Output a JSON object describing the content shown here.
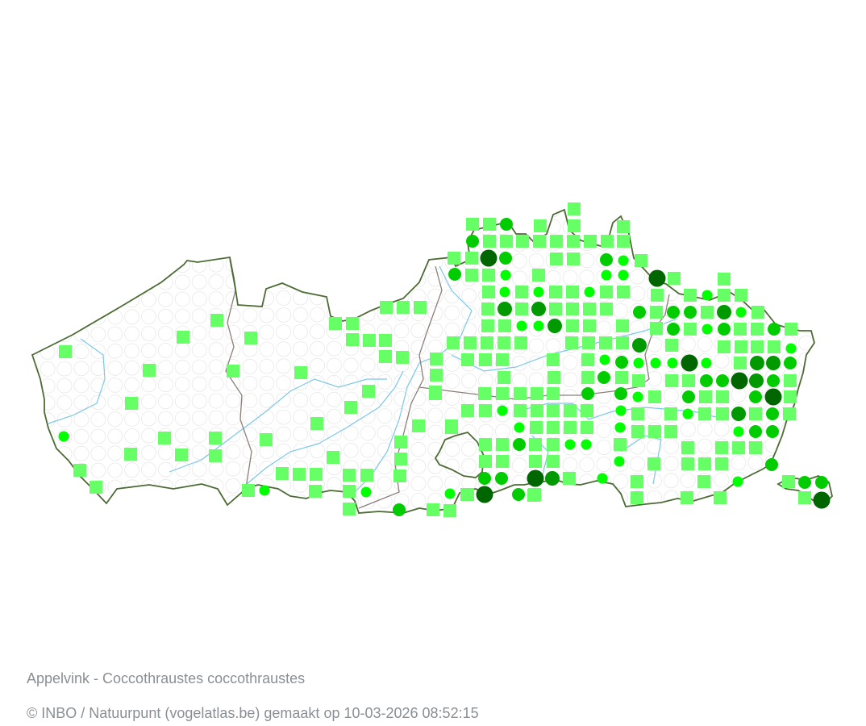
{
  "map": {
    "species_title": "Appelvink - Coccothraustes coccothraustes",
    "credit": "© INBO / Natuurpunt (vogelatlas.be) gemaakt op 10-03-2026 08:52:15",
    "colors": {
      "border": "#4d6b35",
      "province_border": "#8c7f7a",
      "river": "#7cc8e8",
      "empty_square": "#e8e8e8",
      "marker_square": "#66ff66",
      "marker_class_1": "#00ff00",
      "marker_class_2": "#00cc00",
      "marker_class_3": "#009900",
      "marker_class_4": "#006600"
    }
  }
}
